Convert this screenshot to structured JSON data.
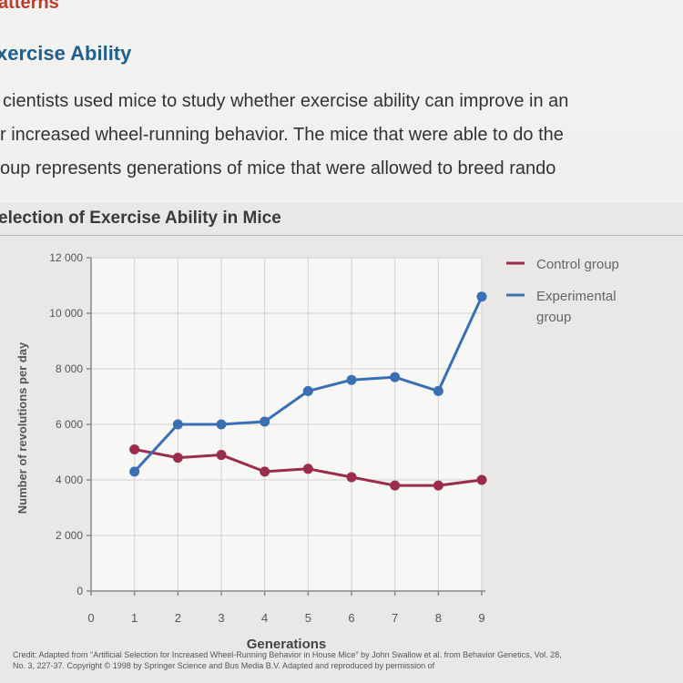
{
  "page": {
    "section_label": "atterns",
    "heading": "xercise Ability",
    "paragraph_lines": [
      "cientists used mice to study whether exercise ability can improve in an",
      "r increased wheel-running behavior. The mice that were able to do the",
      "oup represents generations of mice that were allowed to breed rando"
    ],
    "figure_title": "election of Exercise Ability in Mice",
    "credit_lines": [
      "Credit: Adapted from \"Artificial Selection for Increased Wheel-Running Behavior in House Mice\" by John Swallow et al. from Behavior Genetics, Vol. 28,",
      "No. 3, 227-37. Copyright © 1998 by Springer Science and Bus Media B.V. Adapted and reproduced by permission of"
    ]
  },
  "chart_data": {
    "type": "line",
    "title": "election of Exercise Ability in Mice",
    "xlabel": "Generations",
    "ylabel": "Number of revolutions per day",
    "x": [
      0,
      1,
      2,
      3,
      4,
      5,
      6,
      7,
      8,
      9
    ],
    "x_tick_labels": [
      "0",
      "1",
      "2",
      "3",
      "4",
      "5",
      "6",
      "7",
      "8",
      "9"
    ],
    "xlim": [
      0,
      9
    ],
    "ylim": [
      0,
      12000
    ],
    "y_ticks": [
      0,
      2000,
      4000,
      6000,
      8000,
      10000,
      12000
    ],
    "y_tick_labels": [
      "0",
      "2 000",
      "4 000",
      "6 000",
      "8 000",
      "10 000",
      "12 000"
    ],
    "grid": true,
    "legend_position": "top-right",
    "series": [
      {
        "name": "Control group",
        "color": "#9b2d4a",
        "x": [
          1,
          2,
          3,
          4,
          5,
          6,
          7,
          8,
          9
        ],
        "values": [
          5100,
          4800,
          4900,
          4300,
          4400,
          4100,
          3800,
          3800,
          4000
        ]
      },
      {
        "name": "Experimental group",
        "legend_lines": [
          "Experimental",
          "group"
        ],
        "color": "#3b6fb3",
        "x": [
          1,
          2,
          3,
          4,
          5,
          6,
          7,
          8,
          9
        ],
        "values": [
          4300,
          6000,
          6000,
          6100,
          7200,
          7600,
          7700,
          7200,
          10600
        ]
      }
    ]
  }
}
